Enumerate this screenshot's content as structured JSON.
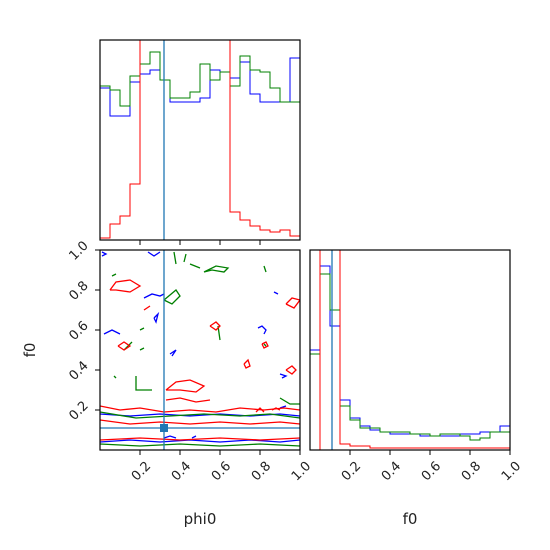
{
  "chart_data": {
    "type": "corner",
    "parameters": [
      "phi0",
      "f0"
    ],
    "xlabels": [
      "phi0",
      "f0"
    ],
    "ylabels": [
      "f0"
    ],
    "ticks": {
      "phi0_x": [
        "0.2",
        "0.4",
        "0.6",
        "0.8",
        "1.0"
      ],
      "f0_y": [
        "0.2",
        "0.4",
        "0.6",
        "0.8",
        "1.0"
      ],
      "f0_x": [
        "0.2",
        "0.4",
        "0.6",
        "0.8",
        "1.0"
      ]
    },
    "ranges": {
      "phi0": [
        0.0,
        1.0
      ],
      "f0": [
        0.0,
        1.0
      ]
    },
    "truth": {
      "phi0": 0.32,
      "f0": 0.11
    },
    "colors": {
      "blue": "#0000ff",
      "green": "#008000",
      "red": "#ff0000",
      "truth": "#1f77b4"
    },
    "hist_phi0": {
      "bins": 20,
      "series": [
        {
          "color": "blue",
          "values": [
            0.76,
            0.62,
            0.62,
            0.79,
            0.83,
            0.85,
            0.8,
            0.69,
            0.69,
            0.69,
            0.71,
            0.85,
            0.84,
            0.81,
            0.89,
            0.73,
            0.69,
            0.69,
            0.69,
            0.91
          ]
        },
        {
          "color": "green",
          "values": [
            0.77,
            0.75,
            0.67,
            0.82,
            0.88,
            0.94,
            0.8,
            0.71,
            0.71,
            0.74,
            0.88,
            0.8,
            0.84,
            0.77,
            0.92,
            0.85,
            0.84,
            0.76,
            0.69,
            0.69
          ]
        },
        {
          "color": "red",
          "values": [
            0.01,
            0.08,
            0.12,
            0.28,
            1.1,
            1.1,
            1.1,
            1.1,
            1.1,
            1.1,
            1.1,
            1.1,
            1.1,
            0.14,
            0.1,
            0.07,
            0.05,
            0.04,
            0.05,
            0.02
          ]
        }
      ]
    },
    "hist_f0": {
      "bins": 20,
      "series": [
        {
          "color": "blue",
          "values": [
            0.5,
            0.92,
            0.62,
            0.25,
            0.16,
            0.12,
            0.1,
            0.09,
            0.08,
            0.08,
            0.08,
            0.07,
            0.07,
            0.07,
            0.07,
            0.08,
            0.08,
            0.09,
            0.09,
            0.12
          ]
        },
        {
          "color": "green",
          "values": [
            0.48,
            0.88,
            0.7,
            0.22,
            0.15,
            0.11,
            0.11,
            0.09,
            0.09,
            0.09,
            0.08,
            0.08,
            0.07,
            0.08,
            0.08,
            0.07,
            0.05,
            0.06,
            0.09,
            0.09
          ]
        },
        {
          "color": "red",
          "values": [
            0.0,
            1.1,
            1.1,
            0.03,
            0.02,
            0.02,
            0.01,
            0.01,
            0.01,
            0.01,
            0.01,
            0.01,
            0.01,
            0.01,
            0.01,
            0.01,
            0.01,
            0.01,
            0.01,
            0.01
          ]
        }
      ]
    },
    "contours_phi0_f0": [
      {
        "color": "blue",
        "points": [
          [
            0.01,
            0.99
          ],
          [
            0.03,
            0.98
          ],
          [
            0.01,
            0.97
          ]
        ]
      },
      {
        "color": "blue",
        "points": [
          [
            0.24,
            0.99
          ],
          [
            0.27,
            0.97
          ],
          [
            0.3,
            0.99
          ]
        ]
      },
      {
        "color": "blue",
        "points": [
          [
            0.22,
            0.76
          ],
          [
            0.26,
            0.78
          ],
          [
            0.3,
            0.77
          ],
          [
            0.32,
            0.78
          ]
        ]
      },
      {
        "color": "blue",
        "points": [
          [
            0.27,
            0.66
          ],
          [
            0.29,
            0.68
          ],
          [
            0.28,
            0.64
          ],
          [
            0.27,
            0.66
          ]
        ]
      },
      {
        "color": "blue",
        "points": [
          [
            0.35,
            0.48
          ],
          [
            0.38,
            0.5
          ],
          [
            0.36,
            0.47
          ]
        ]
      },
      {
        "color": "blue",
        "points": [
          [
            0.02,
            0.58
          ],
          [
            0.06,
            0.6
          ],
          [
            0.1,
            0.58
          ]
        ]
      },
      {
        "color": "blue",
        "points": [
          [
            0.79,
            0.61
          ],
          [
            0.81,
            0.62
          ],
          [
            0.83,
            0.6
          ],
          [
            0.82,
            0.58
          ]
        ]
      },
      {
        "color": "blue",
        "points": [
          [
            0.9,
            0.38
          ],
          [
            0.93,
            0.37
          ],
          [
            0.91,
            0.36
          ]
        ]
      },
      {
        "color": "blue",
        "points": [
          [
            0.87,
            0.79
          ],
          [
            0.89,
            0.78
          ]
        ]
      },
      {
        "color": "blue",
        "points": [
          [
            0.0,
            0.18
          ],
          [
            0.15,
            0.17
          ],
          [
            0.3,
            0.18
          ],
          [
            0.45,
            0.17
          ],
          [
            0.6,
            0.18
          ],
          [
            0.75,
            0.17
          ],
          [
            0.9,
            0.18
          ],
          [
            1.0,
            0.17
          ]
        ]
      },
      {
        "color": "blue",
        "points": [
          [
            0.0,
            0.04
          ],
          [
            0.15,
            0.05
          ],
          [
            0.3,
            0.04
          ],
          [
            0.45,
            0.05
          ],
          [
            0.6,
            0.04
          ],
          [
            0.75,
            0.05
          ],
          [
            0.9,
            0.04
          ],
          [
            1.0,
            0.05
          ]
        ]
      },
      {
        "color": "blue",
        "points": [
          [
            0.32,
            0.06
          ],
          [
            0.35,
            0.07
          ],
          [
            0.38,
            0.06
          ]
        ]
      },
      {
        "color": "blue",
        "points": [
          [
            0.46,
            0.06
          ],
          [
            0.48,
            0.07
          ]
        ]
      },
      {
        "color": "blue",
        "points": [
          [
            0.9,
            0.21
          ],
          [
            0.93,
            0.22
          ]
        ]
      },
      {
        "color": "green",
        "points": [
          [
            0.06,
            0.87
          ],
          [
            0.08,
            0.88
          ]
        ]
      },
      {
        "color": "green",
        "points": [
          [
            0.37,
            0.99
          ],
          [
            0.38,
            0.93
          ]
        ]
      },
      {
        "color": "green",
        "points": [
          [
            0.45,
            0.93
          ],
          [
            0.5,
            0.91
          ]
        ]
      },
      {
        "color": "green",
        "points": [
          [
            0.52,
            0.89
          ],
          [
            0.56,
            0.9
          ],
          [
            0.62,
            0.89
          ],
          [
            0.64,
            0.91
          ],
          [
            0.58,
            0.92
          ],
          [
            0.52,
            0.89
          ]
        ]
      },
      {
        "color": "green",
        "points": [
          [
            0.42,
            0.94
          ],
          [
            0.43,
            0.98
          ]
        ]
      },
      {
        "color": "green",
        "points": [
          [
            0.82,
            0.92
          ],
          [
            0.83,
            0.89
          ]
        ]
      },
      {
        "color": "green",
        "points": [
          [
            0.32,
            0.75
          ],
          [
            0.38,
            0.8
          ],
          [
            0.4,
            0.77
          ],
          [
            0.36,
            0.73
          ],
          [
            0.32,
            0.75
          ]
        ]
      },
      {
        "color": "green",
        "points": [
          [
            0.2,
            0.6
          ],
          [
            0.22,
            0.61
          ]
        ]
      },
      {
        "color": "green",
        "points": [
          [
            0.2,
            0.5
          ],
          [
            0.22,
            0.51
          ]
        ]
      },
      {
        "color": "green",
        "points": [
          [
            0.12,
            0.5
          ],
          [
            0.16,
            0.54
          ]
        ]
      },
      {
        "color": "green",
        "points": [
          [
            0.59,
            0.62
          ],
          [
            0.6,
            0.55
          ]
        ]
      },
      {
        "color": "green",
        "points": [
          [
            0.07,
            0.37
          ],
          [
            0.08,
            0.36
          ]
        ]
      },
      {
        "color": "green",
        "points": [
          [
            0.18,
            0.37
          ],
          [
            0.18,
            0.3
          ],
          [
            0.26,
            0.3
          ]
        ]
      },
      {
        "color": "green",
        "points": [
          [
            0.82,
            0.53
          ],
          [
            0.83,
            0.52
          ]
        ]
      },
      {
        "color": "green",
        "points": [
          [
            0.9,
            0.26
          ],
          [
            0.95,
            0.23
          ],
          [
            1.0,
            0.23
          ]
        ]
      },
      {
        "color": "green",
        "points": [
          [
            0.0,
            0.19
          ],
          [
            0.18,
            0.16
          ],
          [
            0.35,
            0.17
          ],
          [
            0.52,
            0.18
          ],
          [
            0.7,
            0.17
          ],
          [
            0.85,
            0.18
          ],
          [
            1.0,
            0.16
          ]
        ]
      },
      {
        "color": "green",
        "points": [
          [
            0.0,
            0.03
          ],
          [
            0.2,
            0.02
          ],
          [
            0.4,
            0.03
          ],
          [
            0.6,
            0.02
          ],
          [
            0.8,
            0.03
          ],
          [
            1.0,
            0.02
          ]
        ]
      },
      {
        "color": "red",
        "points": [
          [
            0.05,
            0.8
          ],
          [
            0.08,
            0.84
          ],
          [
            0.15,
            0.85
          ],
          [
            0.2,
            0.82
          ],
          [
            0.15,
            0.79
          ],
          [
            0.08,
            0.8
          ],
          [
            0.05,
            0.8
          ]
        ]
      },
      {
        "color": "red",
        "points": [
          [
            0.22,
            0.7
          ],
          [
            0.25,
            0.72
          ]
        ]
      },
      {
        "color": "red",
        "points": [
          [
            0.09,
            0.52
          ],
          [
            0.12,
            0.54
          ],
          [
            0.15,
            0.52
          ],
          [
            0.12,
            0.5
          ],
          [
            0.09,
            0.52
          ]
        ]
      },
      {
        "color": "red",
        "points": [
          [
            0.55,
            0.62
          ],
          [
            0.58,
            0.64
          ],
          [
            0.6,
            0.62
          ],
          [
            0.58,
            0.6
          ],
          [
            0.55,
            0.62
          ]
        ]
      },
      {
        "color": "red",
        "points": [
          [
            0.72,
            0.43
          ],
          [
            0.74,
            0.45
          ],
          [
            0.75,
            0.42
          ],
          [
            0.73,
            0.41
          ],
          [
            0.72,
            0.43
          ]
        ]
      },
      {
        "color": "red",
        "points": [
          [
            0.81,
            0.53
          ],
          [
            0.83,
            0.54
          ],
          [
            0.84,
            0.52
          ],
          [
            0.82,
            0.51
          ],
          [
            0.81,
            0.53
          ]
        ]
      },
      {
        "color": "red",
        "points": [
          [
            0.93,
            0.73
          ],
          [
            0.96,
            0.76
          ],
          [
            1.0,
            0.75
          ],
          [
            0.97,
            0.71
          ],
          [
            0.93,
            0.73
          ]
        ]
      },
      {
        "color": "red",
        "points": [
          [
            0.93,
            0.4
          ],
          [
            0.96,
            0.38
          ],
          [
            0.98,
            0.4
          ],
          [
            0.96,
            0.42
          ],
          [
            0.93,
            0.4
          ]
        ]
      },
      {
        "color": "red",
        "points": [
          [
            0.33,
            0.3
          ],
          [
            0.38,
            0.34
          ],
          [
            0.45,
            0.35
          ],
          [
            0.52,
            0.32
          ],
          [
            0.48,
            0.29
          ],
          [
            0.4,
            0.3
          ],
          [
            0.33,
            0.3
          ]
        ]
      },
      {
        "color": "red",
        "points": [
          [
            0.33,
            0.25
          ],
          [
            0.4,
            0.26
          ],
          [
            0.48,
            0.24
          ],
          [
            0.55,
            0.25
          ]
        ]
      },
      {
        "color": "red",
        "points": [
          [
            0.0,
            0.22
          ],
          [
            0.1,
            0.2
          ],
          [
            0.2,
            0.21
          ],
          [
            0.32,
            0.19
          ],
          [
            0.45,
            0.2
          ],
          [
            0.58,
            0.19
          ],
          [
            0.7,
            0.21
          ],
          [
            0.82,
            0.2
          ],
          [
            0.92,
            0.21
          ],
          [
            1.0,
            0.2
          ]
        ]
      },
      {
        "color": "red",
        "points": [
          [
            0.0,
            0.15
          ],
          [
            0.15,
            0.13
          ],
          [
            0.3,
            0.14
          ],
          [
            0.45,
            0.13
          ],
          [
            0.6,
            0.14
          ],
          [
            0.75,
            0.13
          ],
          [
            0.9,
            0.14
          ],
          [
            1.0,
            0.13
          ]
        ]
      },
      {
        "color": "red",
        "points": [
          [
            0.78,
            0.19
          ],
          [
            0.8,
            0.21
          ],
          [
            0.82,
            0.19
          ]
        ]
      },
      {
        "color": "red",
        "points": [
          [
            0.86,
            0.2
          ],
          [
            0.88,
            0.21
          ],
          [
            0.9,
            0.2
          ]
        ]
      },
      {
        "color": "red",
        "points": [
          [
            0.0,
            0.05
          ],
          [
            0.2,
            0.06
          ],
          [
            0.4,
            0.05
          ],
          [
            0.6,
            0.06
          ],
          [
            0.8,
            0.05
          ],
          [
            1.0,
            0.06
          ]
        ]
      }
    ]
  }
}
